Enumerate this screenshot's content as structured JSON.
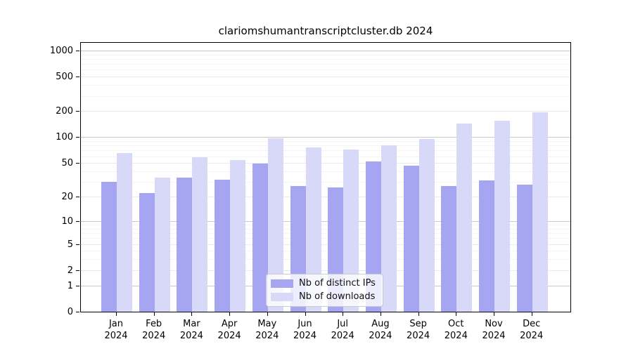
{
  "chart_data": {
    "type": "bar",
    "title": "clariomshumantranscriptcluster.db 2024",
    "categories": [
      "Jan",
      "Feb",
      "Mar",
      "Apr",
      "May",
      "Jun",
      "Jul",
      "Aug",
      "Sep",
      "Oct",
      "Nov",
      "Dec"
    ],
    "year": "2024",
    "series": [
      {
        "name": "Nb of distinct IPs",
        "color": "#a5a5f2",
        "values": [
          30,
          22,
          34,
          32,
          49,
          27,
          26,
          52,
          47,
          27,
          31,
          28
        ]
      },
      {
        "name": "Nb of downloads",
        "color": "#d8d8f8",
        "values": [
          65,
          34,
          58,
          54,
          98,
          76,
          72,
          81,
          95,
          145,
          155,
          195
        ]
      }
    ],
    "yscale": "log10(1+x)",
    "yticks": [
      0,
      1,
      2,
      5,
      10,
      20,
      50,
      100,
      200,
      500,
      1000
    ],
    "minor_gridlines": [
      3,
      4,
      6,
      7,
      8,
      9,
      30,
      40,
      60,
      70,
      80,
      90,
      300,
      400,
      600,
      700,
      800,
      900
    ],
    "ylim": [
      0,
      1300
    ],
    "grid": true,
    "legend_position": "bottom-center",
    "colors": {
      "axis": "#000000",
      "gridline_decade": "#c8c8c8",
      "gridline_major": "#eaeaea",
      "gridline_minor": "#f4f4f4",
      "legend_border": "#cccccc"
    }
  }
}
